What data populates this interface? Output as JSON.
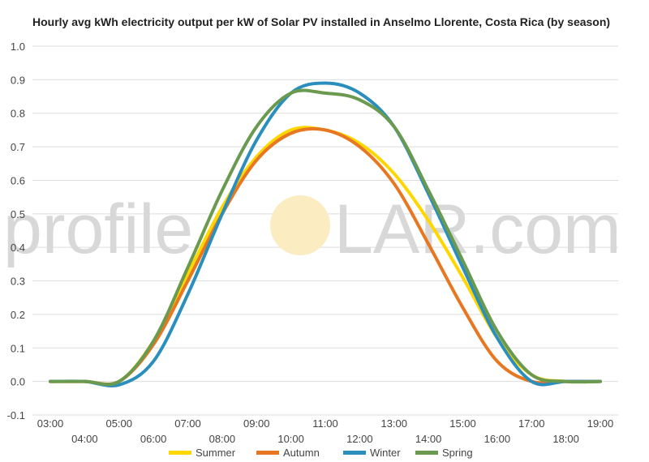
{
  "watermark": {
    "left": "profile",
    "right": "LAR.com"
  },
  "chart_data": {
    "type": "line",
    "title": "Hourly avg kWh electricity output per kW of Solar PV installed in Anselmo Llorente, Costa Rica (by season)",
    "xlabel": "",
    "ylabel": "",
    "xlim": [
      3,
      19
    ],
    "ylim": [
      -0.1,
      1.0
    ],
    "y_ticks": [
      "1.0",
      "0.9",
      "0.8",
      "0.7",
      "0.6",
      "0.5",
      "0.4",
      "0.3",
      "0.2",
      "0.1",
      "0.0",
      "-0.1"
    ],
    "x_ticks": [
      "03:00",
      "04:00",
      "05:00",
      "06:00",
      "07:00",
      "08:00",
      "09:00",
      "10:00",
      "11:00",
      "12:00",
      "13:00",
      "14:00",
      "15:00",
      "16:00",
      "17:00",
      "18:00",
      "19:00"
    ],
    "grid": true,
    "legend_position": "bottom",
    "x": [
      3,
      4,
      5,
      6,
      7,
      8,
      9,
      10,
      11,
      12,
      13,
      14,
      15,
      16,
      17,
      18,
      19
    ],
    "series": [
      {
        "name": "Summer",
        "color": "#ffd700",
        "values": [
          0.0,
          0.0,
          0.0,
          0.12,
          0.32,
          0.52,
          0.67,
          0.75,
          0.75,
          0.71,
          0.62,
          0.48,
          0.31,
          0.13,
          0.02,
          0.0,
          0.0
        ]
      },
      {
        "name": "Autumn",
        "color": "#e87722",
        "values": [
          0.0,
          0.0,
          0.0,
          0.11,
          0.3,
          0.5,
          0.66,
          0.74,
          0.75,
          0.7,
          0.59,
          0.41,
          0.22,
          0.06,
          0.0,
          0.0,
          0.0
        ]
      },
      {
        "name": "Winter",
        "color": "#2a8fbd",
        "values": [
          0.0,
          0.0,
          -0.01,
          0.06,
          0.26,
          0.5,
          0.72,
          0.86,
          0.89,
          0.86,
          0.76,
          0.56,
          0.34,
          0.13,
          0.0,
          0.0,
          0.0
        ]
      },
      {
        "name": "Spring",
        "color": "#6a9a4f",
        "values": [
          0.0,
          0.0,
          0.0,
          0.12,
          0.34,
          0.57,
          0.76,
          0.86,
          0.86,
          0.84,
          0.76,
          0.57,
          0.36,
          0.15,
          0.02,
          0.0,
          0.0
        ]
      }
    ]
  }
}
